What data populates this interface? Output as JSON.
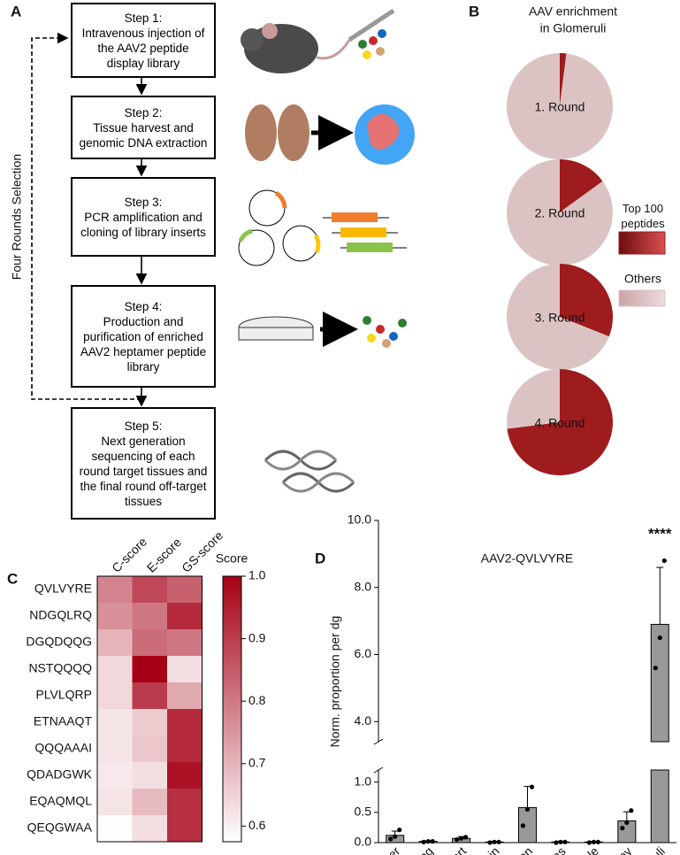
{
  "panel_labels": [
    "A",
    "B",
    "C",
    "D"
  ],
  "flowchart": {
    "loop_label": "Four Rounds Selection",
    "steps": [
      {
        "title": "Step 1:",
        "text": "Intravenous injection of the AAV2 peptide display library"
      },
      {
        "title": "Step 2:",
        "text": "Tissue harvest and genomic DNA extraction"
      },
      {
        "title": "Step 3:",
        "text": "PCR amplification and cloning of library inserts"
      },
      {
        "title": "Step 4:",
        "text": "Production and purification of enriched AAV2 heptamer peptide library"
      },
      {
        "title": "Step 5:",
        "text": "Next generation sequencing of each round target tissues and the final round off-target tissues"
      }
    ]
  },
  "chart_data": [
    {
      "type": "pie",
      "title_lines": [
        "AAV enrichment",
        "in Glomeruli"
      ],
      "categories": [
        "Top 100 peptides",
        "Others"
      ],
      "colors": [
        "#9e1b1e",
        "#dcc3c3"
      ],
      "pies": [
        {
          "name": "1. Round",
          "values": [
            2,
            98
          ]
        },
        {
          "name": "2. Round",
          "values": [
            15,
            85
          ]
        },
        {
          "name": "3. Round",
          "values": [
            31,
            69
          ]
        },
        {
          "name": "4. Round",
          "values": [
            73,
            27
          ]
        }
      ]
    },
    {
      "type": "heatmap",
      "x": [
        "C-score",
        "E-score",
        "GS-score"
      ],
      "y": [
        "QVLVYRE",
        "NDGQLRQ",
        "DGQDQQG",
        "NSTQQQQ",
        "PLVLQRP",
        "ETNAAQT",
        "QQQAAAI",
        "QDADGWK",
        "EQAQMQL",
        "QEQGWAA"
      ],
      "values": [
        [
          0.78,
          0.88,
          0.84
        ],
        [
          0.76,
          0.8,
          0.93
        ],
        [
          0.7,
          0.82,
          0.8
        ],
        [
          0.64,
          1.0,
          0.63
        ],
        [
          0.64,
          0.9,
          0.72
        ],
        [
          0.62,
          0.66,
          0.93
        ],
        [
          0.62,
          0.67,
          0.93
        ],
        [
          0.61,
          0.63,
          0.97
        ],
        [
          0.62,
          0.69,
          0.92
        ],
        [
          0.58,
          0.63,
          0.92
        ]
      ],
      "colorbar": {
        "title": "Score",
        "lim": [
          0.575,
          1.0
        ],
        "ticks": [
          0.6,
          0.7,
          0.8,
          0.9,
          {
            "value": 1.0,
            "label": "1.0"
          }
        ],
        "colors": [
          "#ffffff",
          "#a50015"
        ]
      }
    },
    {
      "type": "bar",
      "title": "AAV2-QVLVYRE",
      "ylabel": "Norm. proportion per dg",
      "annotation": "****",
      "color": "#999999",
      "categories": [
        "Liver",
        "Lung",
        "Heart",
        "Brain",
        "Spleen",
        "Pancreas",
        "Muscle",
        "Kidney",
        "Glomeruli"
      ],
      "values": [
        0.12,
        0.02,
        0.07,
        0.01,
        0.58,
        0.01,
        0.01,
        0.36,
        6.9
      ],
      "errors": [
        0.07,
        0.01,
        0.03,
        0.01,
        0.35,
        0.01,
        0.01,
        0.15,
        1.7
      ],
      "points": [
        [
          0.06,
          0.1,
          0.21
        ],
        [
          0.01,
          0.02,
          0.02
        ],
        [
          0.05,
          0.07,
          0.09
        ],
        [
          0.0,
          0.01,
          0.01
        ],
        [
          0.28,
          0.55,
          0.92
        ],
        [
          0.0,
          0.01,
          0.01
        ],
        [
          0.0,
          0.01,
          0.01
        ],
        [
          0.24,
          0.33,
          0.53
        ],
        [
          5.6,
          6.5,
          8.8
        ]
      ],
      "ylim_lower": [
        0,
        1.2
      ],
      "ylim_upper": [
        3.4,
        10
      ],
      "yticks": [
        {
          "value": 0,
          "label": "0.0"
        },
        0.5,
        {
          "value": 1,
          "label": "1.0"
        },
        {
          "value": 4,
          "label": "4.0"
        },
        {
          "value": 6,
          "label": "6.0"
        },
        {
          "value": 8,
          "label": "8.0"
        },
        {
          "value": 10,
          "label": "10.0"
        }
      ]
    }
  ]
}
